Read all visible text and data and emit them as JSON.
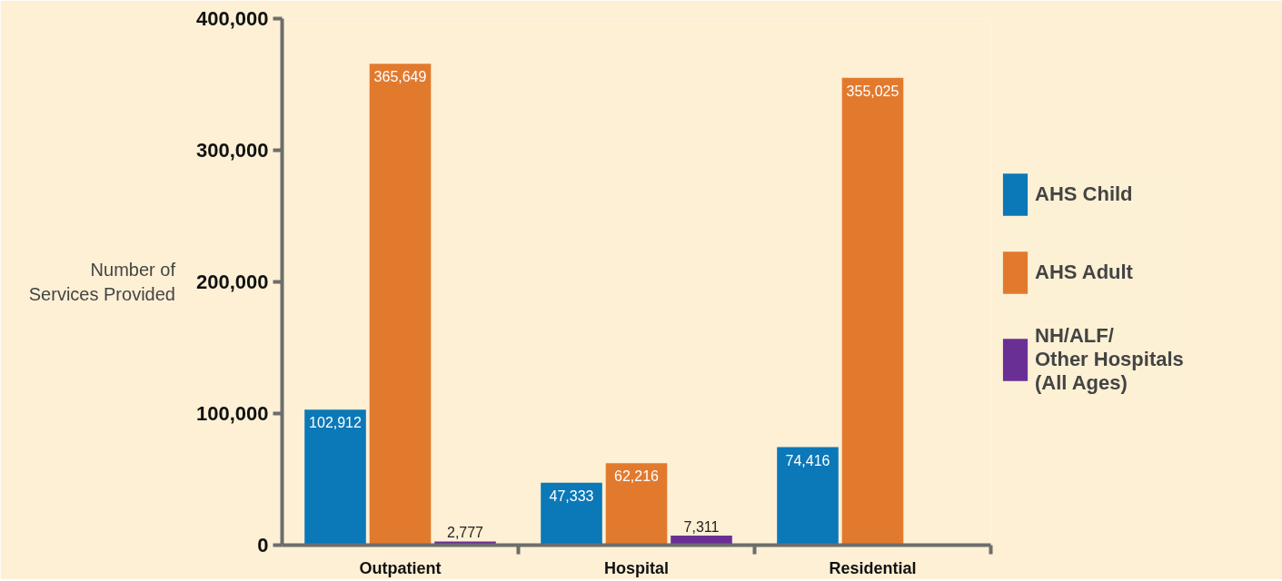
{
  "chart_data": {
    "type": "bar",
    "ylabel": "Number of\nServices Provided",
    "categories": [
      "Outpatient",
      "Hospital",
      "Residential"
    ],
    "series": [
      {
        "name": "AHS Child",
        "color": "#0b78b8",
        "values": [
          102912,
          47333,
          74416
        ],
        "value_labels": [
          "102,912",
          "47,333",
          "74,416"
        ]
      },
      {
        "name": "AHS Adult",
        "color": "#e27a2e",
        "values": [
          365649,
          62216,
          355025
        ],
        "value_labels": [
          "365,649",
          "62,216",
          "355,025"
        ]
      },
      {
        "name": "NH/ALF/\nOther Hospitals\n(All Ages)",
        "color": "#6a2f95",
        "values": [
          2777,
          7311,
          null
        ],
        "value_labels": [
          "2,777",
          "7,311",
          null
        ]
      }
    ],
    "ylim": [
      0,
      400000
    ],
    "yticks": [
      {
        "value": 0,
        "label": "0"
      },
      {
        "value": 100000,
        "label": "100,000"
      },
      {
        "value": 200000,
        "label": "200,000"
      },
      {
        "value": 300000,
        "label": "300,000"
      },
      {
        "value": 400000,
        "label": "400,000"
      }
    ],
    "data_labels": true,
    "legend": "right",
    "grid": false
  }
}
